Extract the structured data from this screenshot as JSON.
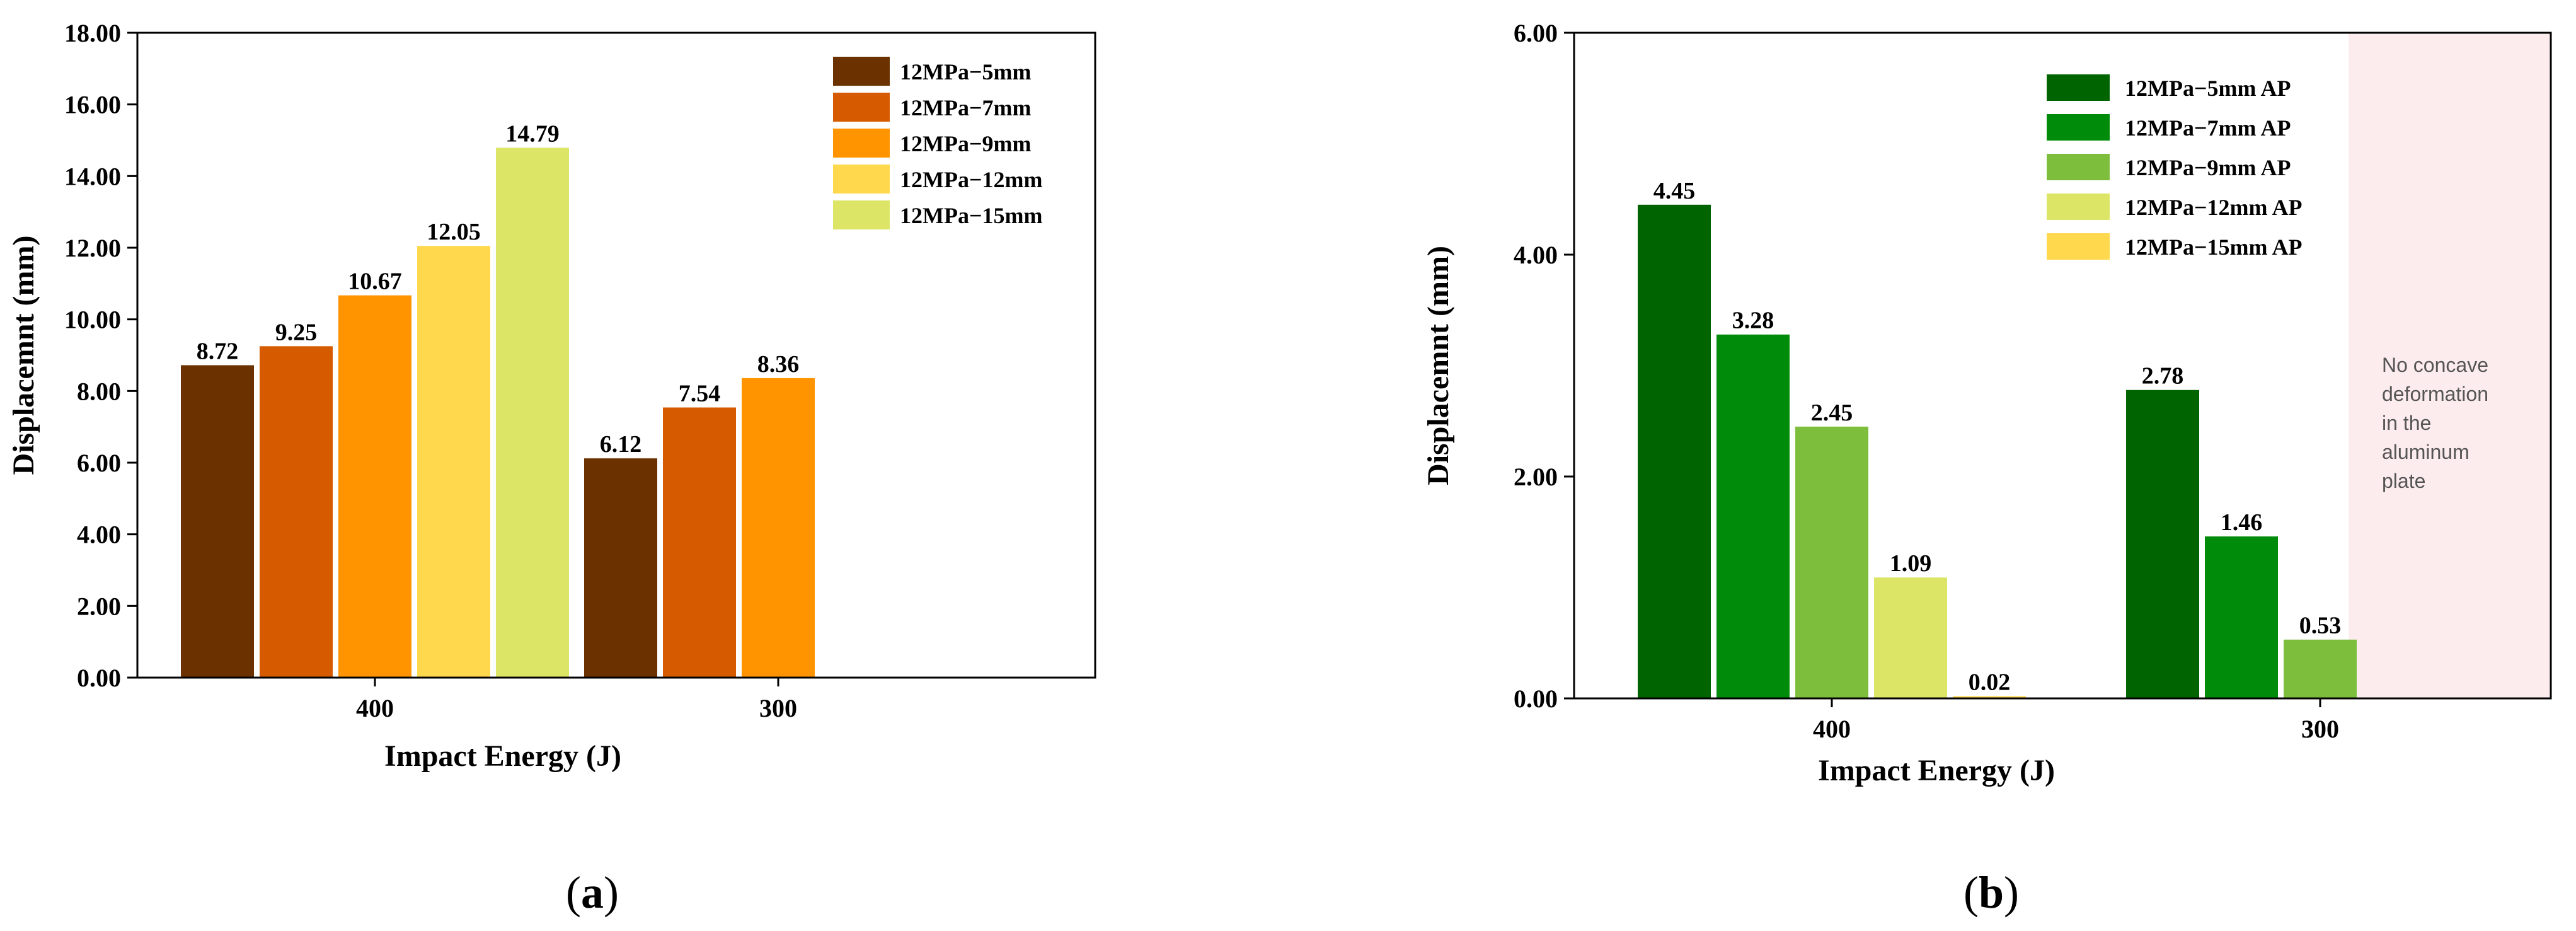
{
  "panels": [
    {
      "letter": "a",
      "chart_data": {
        "type": "bar",
        "categories": [
          "400",
          "300"
        ],
        "series": [
          {
            "name": "12MPa−5mm",
            "color": "#6b3200",
            "values": [
              8.72,
              6.12
            ]
          },
          {
            "name": "12MPa−7mm",
            "color": "#d65a00",
            "values": [
              9.25,
              7.54
            ]
          },
          {
            "name": "12MPa−9mm",
            "color": "#ff9400",
            "values": [
              10.67,
              8.36
            ]
          },
          {
            "name": "12MPa−12mm",
            "color": "#ffd84d",
            "values": [
              12.05,
              null
            ]
          },
          {
            "name": "12MPa−15mm",
            "color": "#dce565",
            "values": [
              14.79,
              null
            ]
          }
        ],
        "data_labels": [
          [
            "8.72",
            "9.25",
            "10.67",
            "12.05",
            "14.79"
          ],
          [
            "6.12",
            "7.54",
            "8.36",
            "",
            ""
          ]
        ],
        "xlabel": "Impact Energy (J)",
        "ylabel": "Displacemnt (mm)",
        "ylim": [
          0,
          18
        ],
        "yticks": [
          "0.00",
          "2.00",
          "4.00",
          "6.00",
          "8.00",
          "10.00",
          "12.00",
          "14.00",
          "16.00",
          "18.00"
        ],
        "legend_position": "top-right",
        "grid": false
      }
    },
    {
      "letter": "b",
      "chart_data": {
        "type": "bar",
        "categories": [
          "400",
          "300"
        ],
        "series": [
          {
            "name": "12MPa−5mm AP",
            "color": "#006400",
            "values": [
              4.45,
              2.78
            ]
          },
          {
            "name": "12MPa−7mm AP",
            "color": "#008c0a",
            "values": [
              3.28,
              1.46
            ]
          },
          {
            "name": "12MPa−9mm AP",
            "color": "#7dbf3c",
            "values": [
              2.45,
              0.53
            ]
          },
          {
            "name": "12MPa−12mm AP",
            "color": "#dce565",
            "values": [
              1.09,
              null
            ]
          },
          {
            "name": "12MPa−15mm AP",
            "color": "#ffd84d",
            "values": [
              0.02,
              null
            ]
          }
        ],
        "data_labels": [
          [
            "4.45",
            "3.28",
            "2.45",
            "1.09",
            "0.02"
          ],
          [
            "2.78",
            "1.46",
            "0.53",
            "",
            ""
          ]
        ],
        "xlabel": "Impact Energy (J)",
        "ylabel": "Displacemnt (mm)",
        "ylim": [
          0,
          6
        ],
        "yticks": [
          "0.00",
          "2.00",
          "4.00",
          "6.00"
        ],
        "legend_position": "top-right",
        "grid": false,
        "annotation": {
          "lines": [
            "No concave",
            "deformation",
            "in the",
            "aluminum",
            "plate"
          ],
          "fill": "#fdeced"
        }
      }
    }
  ]
}
